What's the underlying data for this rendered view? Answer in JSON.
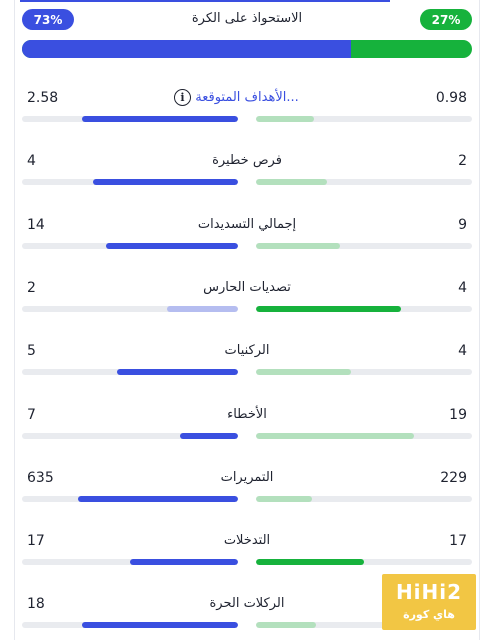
{
  "possession": {
    "title": "الاستحواذ على الكرة",
    "home_label": "73%",
    "away_label": "27%",
    "home_pct": 73,
    "away_pct": 27,
    "home_color": "#3a4fe0",
    "away_color": "#16b23c"
  },
  "stats": [
    {
      "name": "expected-goals",
      "label": "الأهداف المتوقعة...",
      "left": "2.58",
      "right": "0.98",
      "left_frac": 0.72,
      "right_frac": 0.27,
      "left_style": "blue",
      "right_style": "green-light",
      "link": true,
      "icon": "info-icon"
    },
    {
      "name": "big-chances",
      "label": "فرص خطيرة",
      "left": "4",
      "right": "2",
      "left_frac": 0.67,
      "right_frac": 0.33,
      "left_style": "blue",
      "right_style": "green-light"
    },
    {
      "name": "total-shots",
      "label": "إجمالي التسديدات",
      "left": "14",
      "right": "9",
      "left_frac": 0.61,
      "right_frac": 0.39,
      "left_style": "blue",
      "right_style": "green-light"
    },
    {
      "name": "goalkeeper-saves",
      "label": "تصديات الحارس",
      "left": "2",
      "right": "4",
      "left_frac": 0.33,
      "right_frac": 0.67,
      "left_style": "blue-light",
      "right_style": "green"
    },
    {
      "name": "corners",
      "label": "الركنيات",
      "left": "5",
      "right": "4",
      "left_frac": 0.56,
      "right_frac": 0.44,
      "left_style": "blue",
      "right_style": "green-light"
    },
    {
      "name": "fouls",
      "label": "الأخطاء",
      "left": "7",
      "right": "19",
      "left_frac": 0.27,
      "right_frac": 0.73,
      "left_style": "blue",
      "right_style": "green-light"
    },
    {
      "name": "passes",
      "label": "التمريرات",
      "left": "635",
      "right": "229",
      "left_frac": 0.74,
      "right_frac": 0.26,
      "left_style": "blue",
      "right_style": "green-light"
    },
    {
      "name": "tackles",
      "label": "التدخلات",
      "left": "17",
      "right": "17",
      "left_frac": 0.5,
      "right_frac": 0.5,
      "left_style": "blue",
      "right_style": "green"
    },
    {
      "name": "free-kicks",
      "label": "الركلات الحرة",
      "left": "18",
      "right": "",
      "left_frac": 0.72,
      "right_frac": 0.28,
      "left_style": "blue",
      "right_style": "green-light"
    }
  ],
  "logo": {
    "line1": "HiHi2",
    "line2": "هاي كورة",
    "color": "#f2c644"
  }
}
